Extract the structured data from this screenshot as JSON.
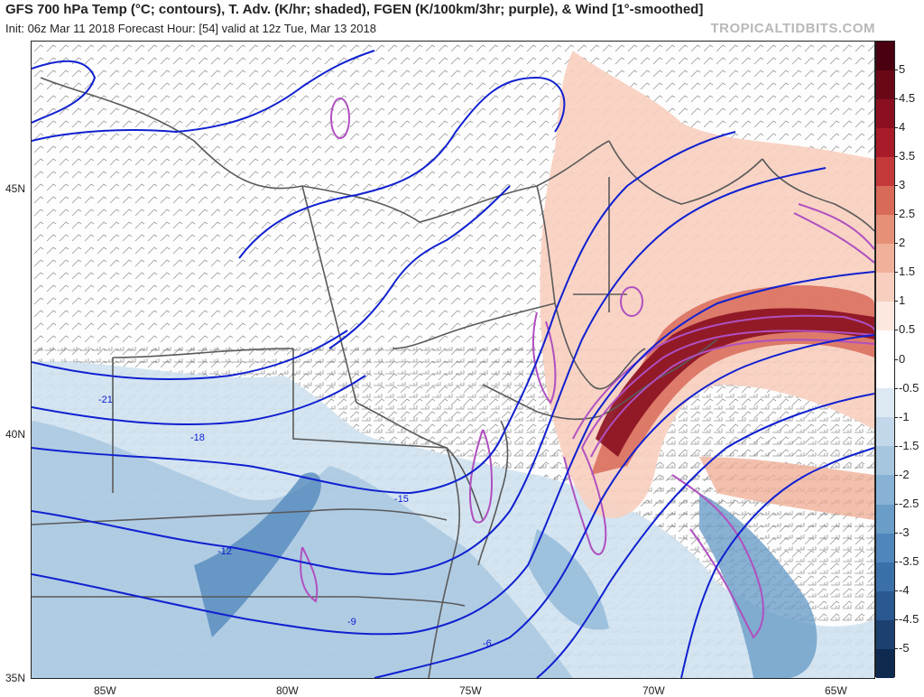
{
  "header": {
    "title": "GFS 700 hPa Temp (°C; contours), T. Adv. (K/hr; shaded), FGEN (K/100km/3hr; purple), & Wind [1°-smoothed]",
    "subtitle": "Init: 06z Mar 11 2018   Forecast Hour: [54]   valid at 12z Tue, Mar 13 2018",
    "brand": "TROPICALTIDBITS.COM"
  },
  "map": {
    "lat_labels": [
      "45N",
      "40N",
      "35N"
    ],
    "lon_labels": [
      "85W",
      "80W",
      "75W",
      "70W",
      "65W"
    ],
    "temp_contour_labels": [
      "-21",
      "-18",
      "-15",
      "-12",
      "-9",
      "-6"
    ],
    "temp_contour_color": "#1020d0",
    "fgen_color": "#b050c0",
    "border_color": "#5a5a5a"
  },
  "colorbar": {
    "ticks": [
      "5",
      "4.5",
      "4",
      "3.5",
      "3",
      "2.5",
      "2",
      "1.5",
      "1",
      "0.5",
      "0",
      "-0.5",
      "-1",
      "-1.5",
      "-2",
      "-2.5",
      "-3",
      "-3.5",
      "-4",
      "-4.5",
      "-5"
    ],
    "colors": [
      "#4a0010",
      "#6a0818",
      "#8a1020",
      "#a81c2a",
      "#c43a3a",
      "#d86a58",
      "#e69078",
      "#f0b09a",
      "#f8cfbf",
      "#fde8e0",
      "#ffffff",
      "#ffffff",
      "#dce9f3",
      "#c2d8ea",
      "#a6c6e0",
      "#88b2d5",
      "#6a9dc8",
      "#4f86bb",
      "#3a6fa8",
      "#2a5890",
      "#1c4170",
      "#0f2a50"
    ]
  }
}
